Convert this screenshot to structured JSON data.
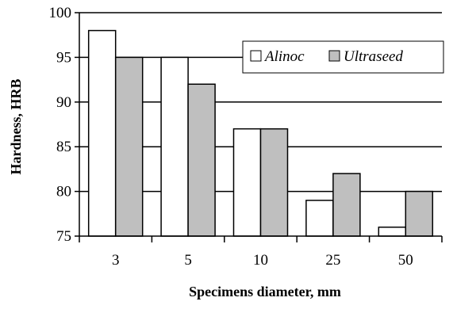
{
  "chart_data": {
    "type": "bar",
    "categories": [
      "3",
      "5",
      "10",
      "25",
      "50"
    ],
    "series": [
      {
        "name": "Alinoc",
        "values": [
          98,
          95,
          87,
          79,
          76
        ],
        "color": "#ffffff"
      },
      {
        "name": "Ultraseed",
        "values": [
          95,
          92,
          87,
          82,
          80
        ],
        "color": "#bfbfbf"
      }
    ],
    "title": "",
    "xlabel": "Specimens diameter, mm",
    "ylabel": "Hardness, HRB",
    "ylim": [
      75,
      100
    ],
    "yticks": [
      "75",
      "80",
      "85",
      "90",
      "95",
      "100"
    ],
    "grid": true,
    "legend": "top-right"
  }
}
